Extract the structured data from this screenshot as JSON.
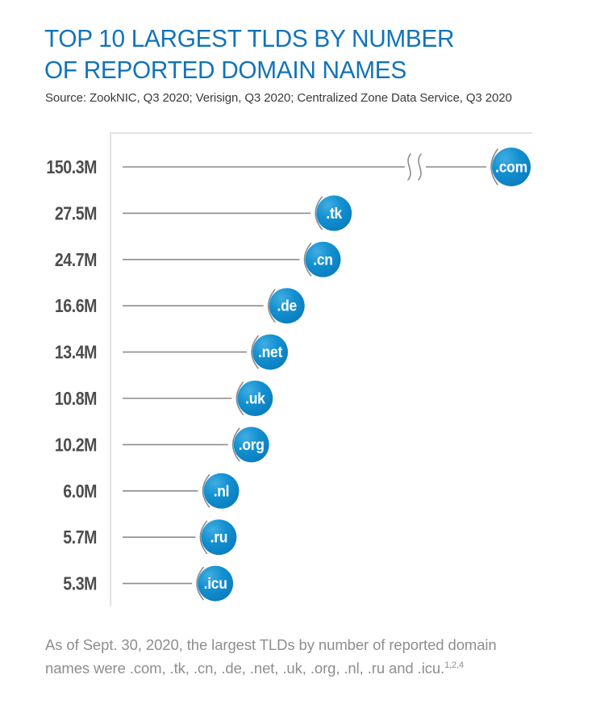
{
  "page": {
    "title_line1": "TOP 10 LARGEST TLDS BY NUMBER",
    "title_line2": "OF REPORTED DOMAIN NAMES",
    "source": "Source: ZookNIC, Q3 2020; Verisign, Q3 2020; Centralized Zone Data Service, Q3 2020",
    "footnote_text": "As of Sept. 30, 2020, the largest TLDs by number of reported domain names were .com, .tk, .cn, .de, .net, .uk, .org, .nl, .ru and .icu.",
    "footnote_superscript": "1,2,4"
  },
  "colors": {
    "title_blue": "#1173ba",
    "bubble_blue": "#0d84c6",
    "bubble_blue_light": "#41ade3",
    "bubble_blue_dark": "#0979bb",
    "stem_gray": "#8c8c8e",
    "frame_gray": "#d8d8d8",
    "value_label_gray": "#4d4d4f",
    "footnote_gray": "#8d8e90"
  },
  "chart_data": {
    "type": "bar",
    "orientation": "horizontal",
    "title": "TOP 10 LARGEST TLDS BY NUMBER OF REPORTED DOMAIN NAMES",
    "unit": "millions of reported domain names",
    "categories": [
      ".com",
      ".tk",
      ".cn",
      ".de",
      ".net",
      ".uk",
      ".org",
      ".nl",
      ".ru",
      ".icu"
    ],
    "values": [
      150.3,
      27.5,
      24.7,
      16.6,
      13.4,
      10.8,
      10.2,
      6.0,
      5.7,
      5.3
    ],
    "value_labels": [
      "150.3M",
      "27.5M",
      "24.7M",
      "16.6M",
      "13.4M",
      "10.8M",
      "10.2M",
      "6.0M",
      "5.7M",
      "5.3M"
    ],
    "axis_break_on": ".com",
    "grid": false,
    "legend": false
  }
}
